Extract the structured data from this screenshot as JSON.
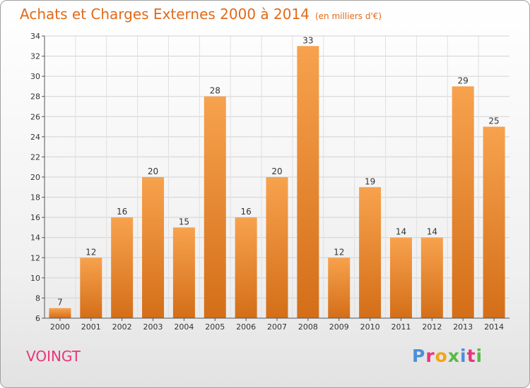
{
  "title": "Achats et Charges Externes 2000 à 2014",
  "unit": "(en milliers d'€)",
  "commune": "VOINGT",
  "logo": {
    "text": "Proxiti",
    "colors": [
      "#4a90d9",
      "#e8357a",
      "#f2a516",
      "#58b947",
      "#4a90d9",
      "#e8357a",
      "#58b947"
    ]
  },
  "colors": {
    "bar_top": "#f7a24e",
    "bar_bottom": "#d46e18",
    "title": "#e06a1a",
    "commune": "#e8357a"
  },
  "chart_data": {
    "type": "bar",
    "categories": [
      "2000",
      "2001",
      "2002",
      "2003",
      "2004",
      "2005",
      "2006",
      "2007",
      "2008",
      "2009",
      "2010",
      "2011",
      "2012",
      "2013",
      "2014"
    ],
    "values": [
      7,
      12,
      16,
      20,
      15,
      28,
      16,
      20,
      33,
      12,
      19,
      14,
      14,
      29,
      25
    ],
    "ylim": [
      6,
      34
    ],
    "yticks": [
      6,
      8,
      10,
      12,
      14,
      16,
      18,
      20,
      22,
      24,
      26,
      28,
      30,
      32,
      34
    ],
    "grid": true,
    "data_labels": true
  }
}
